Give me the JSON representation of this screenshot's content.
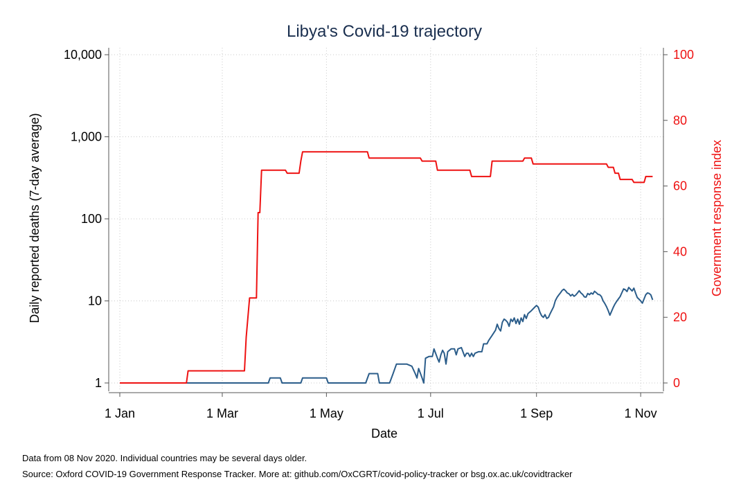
{
  "chart_data": {
    "type": "line",
    "title": "Libya's Covid-19 trajectory",
    "xlabel": "Date",
    "ylabel_left": "Daily reported deaths (7-day average)",
    "ylabel_right": "Government response index",
    "x_ticks": [
      "1 Jan",
      "1 Mar",
      "1 May",
      "1 Jul",
      "1 Sep",
      "1 Nov"
    ],
    "y_left_ticks": [
      "1",
      "10",
      "100",
      "1,000",
      "10,000"
    ],
    "y_left_scale": "log",
    "y_left_range": [
      1,
      10000
    ],
    "y_right_ticks": [
      "0",
      "20",
      "40",
      "60",
      "80",
      "100"
    ],
    "y_right_range": [
      0,
      100
    ],
    "grid": true,
    "series": [
      {
        "axis": "left",
        "color": "#2b5d8a",
        "points": [
          [
            "1 Jan",
            1
          ],
          [
            "8 Mar",
            1
          ],
          [
            "20 Mar",
            1
          ],
          [
            "28 Mar",
            1
          ],
          [
            "29 Mar",
            1.15
          ],
          [
            "4 Apr",
            1.15
          ],
          [
            "5 Apr",
            1
          ],
          [
            "16 Apr",
            1
          ],
          [
            "17 Apr",
            1.15
          ],
          [
            "1 May",
            1.15
          ],
          [
            "2 May",
            1
          ],
          [
            "24 May",
            1
          ],
          [
            "26 May",
            1.3
          ],
          [
            "31 May",
            1.3
          ],
          [
            "1 Jun",
            1
          ],
          [
            "7 Jun",
            1
          ],
          [
            "9 Jun",
            1.3
          ],
          [
            "11 Jun",
            1.7
          ],
          [
            "17 Jun",
            1.7
          ],
          [
            "20 Jun",
            1.6
          ],
          [
            "22 Jun",
            1.3
          ],
          [
            "23 Jun",
            1.15
          ],
          [
            "24 Jun",
            1.5
          ],
          [
            "26 Jun",
            1.15
          ],
          [
            "27 Jun",
            1
          ],
          [
            "28 Jun",
            2.0
          ],
          [
            "30 Jun",
            2.1
          ],
          [
            "2 Jul",
            2.1
          ],
          [
            "3 Jul",
            2.6
          ],
          [
            "5 Jul",
            2.0
          ],
          [
            "6 Jul",
            1.8
          ],
          [
            "7 Jul",
            2.2
          ],
          [
            "8 Jul",
            2.5
          ],
          [
            "9 Jul",
            2.3
          ],
          [
            "10 Jul",
            1.7
          ],
          [
            "11 Jul",
            2.4
          ],
          [
            "13 Jul",
            2.6
          ],
          [
            "15 Jul",
            2.6
          ],
          [
            "16 Jul",
            2.2
          ],
          [
            "17 Jul",
            2.6
          ],
          [
            "19 Jul",
            2.7
          ],
          [
            "21 Jul",
            2.1
          ],
          [
            "22 Jul",
            2.3
          ],
          [
            "23 Jul",
            2.3
          ],
          [
            "24 Jul",
            2.1
          ],
          [
            "25 Jul",
            2.3
          ],
          [
            "26 Jul",
            2.1
          ],
          [
            "27 Jul",
            2.3
          ],
          [
            "29 Jul",
            2.4
          ],
          [
            "31 Jul",
            2.4
          ],
          [
            "1 Aug",
            3.0
          ],
          [
            "3 Aug",
            3.0
          ],
          [
            "4 Aug",
            3.3
          ],
          [
            "6 Aug",
            3.8
          ],
          [
            "8 Aug",
            4.4
          ],
          [
            "9 Aug",
            5.2
          ],
          [
            "10 Aug",
            4.6
          ],
          [
            "11 Aug",
            4.3
          ],
          [
            "12 Aug",
            5.5
          ],
          [
            "13 Aug",
            6.0
          ],
          [
            "14 Aug",
            5.8
          ],
          [
            "15 Aug",
            5.5
          ],
          [
            "16 Aug",
            4.9
          ],
          [
            "17 Aug",
            6.0
          ],
          [
            "18 Aug",
            5.6
          ],
          [
            "19 Aug",
            6.2
          ],
          [
            "20 Aug",
            5.3
          ],
          [
            "21 Aug",
            6.0
          ],
          [
            "22 Aug",
            5.2
          ],
          [
            "23 Aug",
            6.2
          ],
          [
            "24 Aug",
            5.6
          ],
          [
            "25 Aug",
            6.8
          ],
          [
            "26 Aug",
            6.1
          ],
          [
            "27 Aug",
            7.0
          ],
          [
            "29 Aug",
            7.6
          ],
          [
            "31 Aug",
            8.4
          ],
          [
            "1 Sep",
            8.8
          ],
          [
            "2 Sep",
            8.4
          ],
          [
            "3 Sep",
            7.3
          ],
          [
            "4 Sep",
            6.6
          ],
          [
            "5 Sep",
            6.3
          ],
          [
            "6 Sep",
            6.8
          ],
          [
            "7 Sep",
            6.1
          ],
          [
            "8 Sep",
            6.3
          ],
          [
            "9 Sep",
            7.0
          ],
          [
            "11 Sep",
            8.5
          ],
          [
            "12 Sep",
            10.0
          ],
          [
            "13 Sep",
            11.0
          ],
          [
            "14 Sep",
            11.8
          ],
          [
            "15 Sep",
            12.5
          ],
          [
            "16 Sep",
            13.4
          ],
          [
            "17 Sep",
            13.9
          ],
          [
            "18 Sep",
            13.3
          ],
          [
            "19 Sep",
            12.5
          ],
          [
            "20 Sep",
            12.2
          ],
          [
            "21 Sep",
            11.5
          ],
          [
            "22 Sep",
            12.0
          ],
          [
            "23 Sep",
            11.4
          ],
          [
            "24 Sep",
            11.8
          ],
          [
            "25 Sep",
            12.5
          ],
          [
            "26 Sep",
            13.3
          ],
          [
            "27 Sep",
            12.5
          ],
          [
            "28 Sep",
            12.0
          ],
          [
            "29 Sep",
            11.2
          ],
          [
            "30 Sep",
            11.1
          ],
          [
            "1 Oct",
            12.3
          ],
          [
            "2 Oct",
            11.9
          ],
          [
            "3 Oct",
            12.5
          ],
          [
            "4 Oct",
            12.1
          ],
          [
            "5 Oct",
            13.1
          ],
          [
            "6 Oct",
            12.6
          ],
          [
            "7 Oct",
            12.0
          ],
          [
            "8 Oct",
            11.9
          ],
          [
            "9 Oct",
            11.3
          ],
          [
            "10 Oct",
            10.0
          ],
          [
            "11 Oct",
            9.3
          ],
          [
            "12 Oct",
            8.5
          ],
          [
            "13 Oct",
            7.6
          ],
          [
            "14 Oct",
            6.7
          ],
          [
            "15 Oct",
            7.5
          ],
          [
            "16 Oct",
            8.4
          ],
          [
            "17 Oct",
            9.2
          ],
          [
            "18 Oct",
            9.9
          ],
          [
            "19 Oct",
            10.6
          ],
          [
            "20 Oct",
            11.3
          ],
          [
            "21 Oct",
            12.6
          ],
          [
            "22 Oct",
            14.0
          ],
          [
            "23 Oct",
            13.7
          ],
          [
            "24 Oct",
            13.0
          ],
          [
            "25 Oct",
            14.6
          ],
          [
            "26 Oct",
            13.9
          ],
          [
            "27 Oct",
            13.2
          ],
          [
            "28 Oct",
            14.3
          ],
          [
            "29 Oct",
            12.5
          ],
          [
            "30 Oct",
            11.0
          ],
          [
            "31 Oct",
            10.5
          ],
          [
            "1 Nov",
            10.0
          ],
          [
            "2 Nov",
            9.4
          ],
          [
            "3 Nov",
            10.6
          ],
          [
            "4 Nov",
            11.9
          ],
          [
            "5 Nov",
            12.5
          ],
          [
            "6 Nov",
            12.3
          ],
          [
            "7 Nov",
            11.8
          ],
          [
            "8 Nov",
            10.3
          ]
        ]
      },
      {
        "axis": "right",
        "color": "#ee1111",
        "points": [
          [
            "1 Jan",
            0
          ],
          [
            "9 Feb",
            0
          ],
          [
            "10 Feb",
            3.7
          ],
          [
            "14 Mar",
            3.7
          ],
          [
            "15 Mar",
            13.9
          ],
          [
            "17 Mar",
            25.9
          ],
          [
            "21 Mar",
            25.9
          ],
          [
            "22 Mar",
            51.9
          ],
          [
            "23 Mar",
            51.9
          ],
          [
            "24 Mar",
            64.8
          ],
          [
            "7 Apr",
            64.8
          ],
          [
            "8 Apr",
            63.9
          ],
          [
            "15 Apr",
            63.9
          ],
          [
            "16 Apr",
            67.6
          ],
          [
            "17 Apr",
            70.4
          ],
          [
            "25 May",
            70.4
          ],
          [
            "26 May",
            68.5
          ],
          [
            "25 Jun",
            68.5
          ],
          [
            "26 Jun",
            67.6
          ],
          [
            "4 Jul",
            67.6
          ],
          [
            "5 Jul",
            64.8
          ],
          [
            "24 Jul",
            64.8
          ],
          [
            "25 Jul",
            62.9
          ],
          [
            "5 Aug",
            62.9
          ],
          [
            "6 Aug",
            67.6
          ],
          [
            "24 Aug",
            67.6
          ],
          [
            "25 Aug",
            68.5
          ],
          [
            "29 Aug",
            68.5
          ],
          [
            "30 Aug",
            66.7
          ],
          [
            "12 Oct",
            66.7
          ],
          [
            "13 Oct",
            65.7
          ],
          [
            "16 Oct",
            65.7
          ],
          [
            "17 Oct",
            63.9
          ],
          [
            "19 Oct",
            63.9
          ],
          [
            "20 Oct",
            62.0
          ],
          [
            "27 Oct",
            62.0
          ],
          [
            "28 Oct",
            61.1
          ],
          [
            "3 Nov",
            61.1
          ],
          [
            "4 Nov",
            62.9
          ],
          [
            "8 Nov",
            62.9
          ]
        ]
      }
    ]
  },
  "footnotes": {
    "line1": "Data from 08 Nov 2020. Individual countries may be several days older.",
    "line2": "Source: Oxford COVID-19 Government Response Tracker. More at: github.com/OxCGRT/covid-policy-tracker or bsg.ox.ac.uk/covidtracker"
  }
}
